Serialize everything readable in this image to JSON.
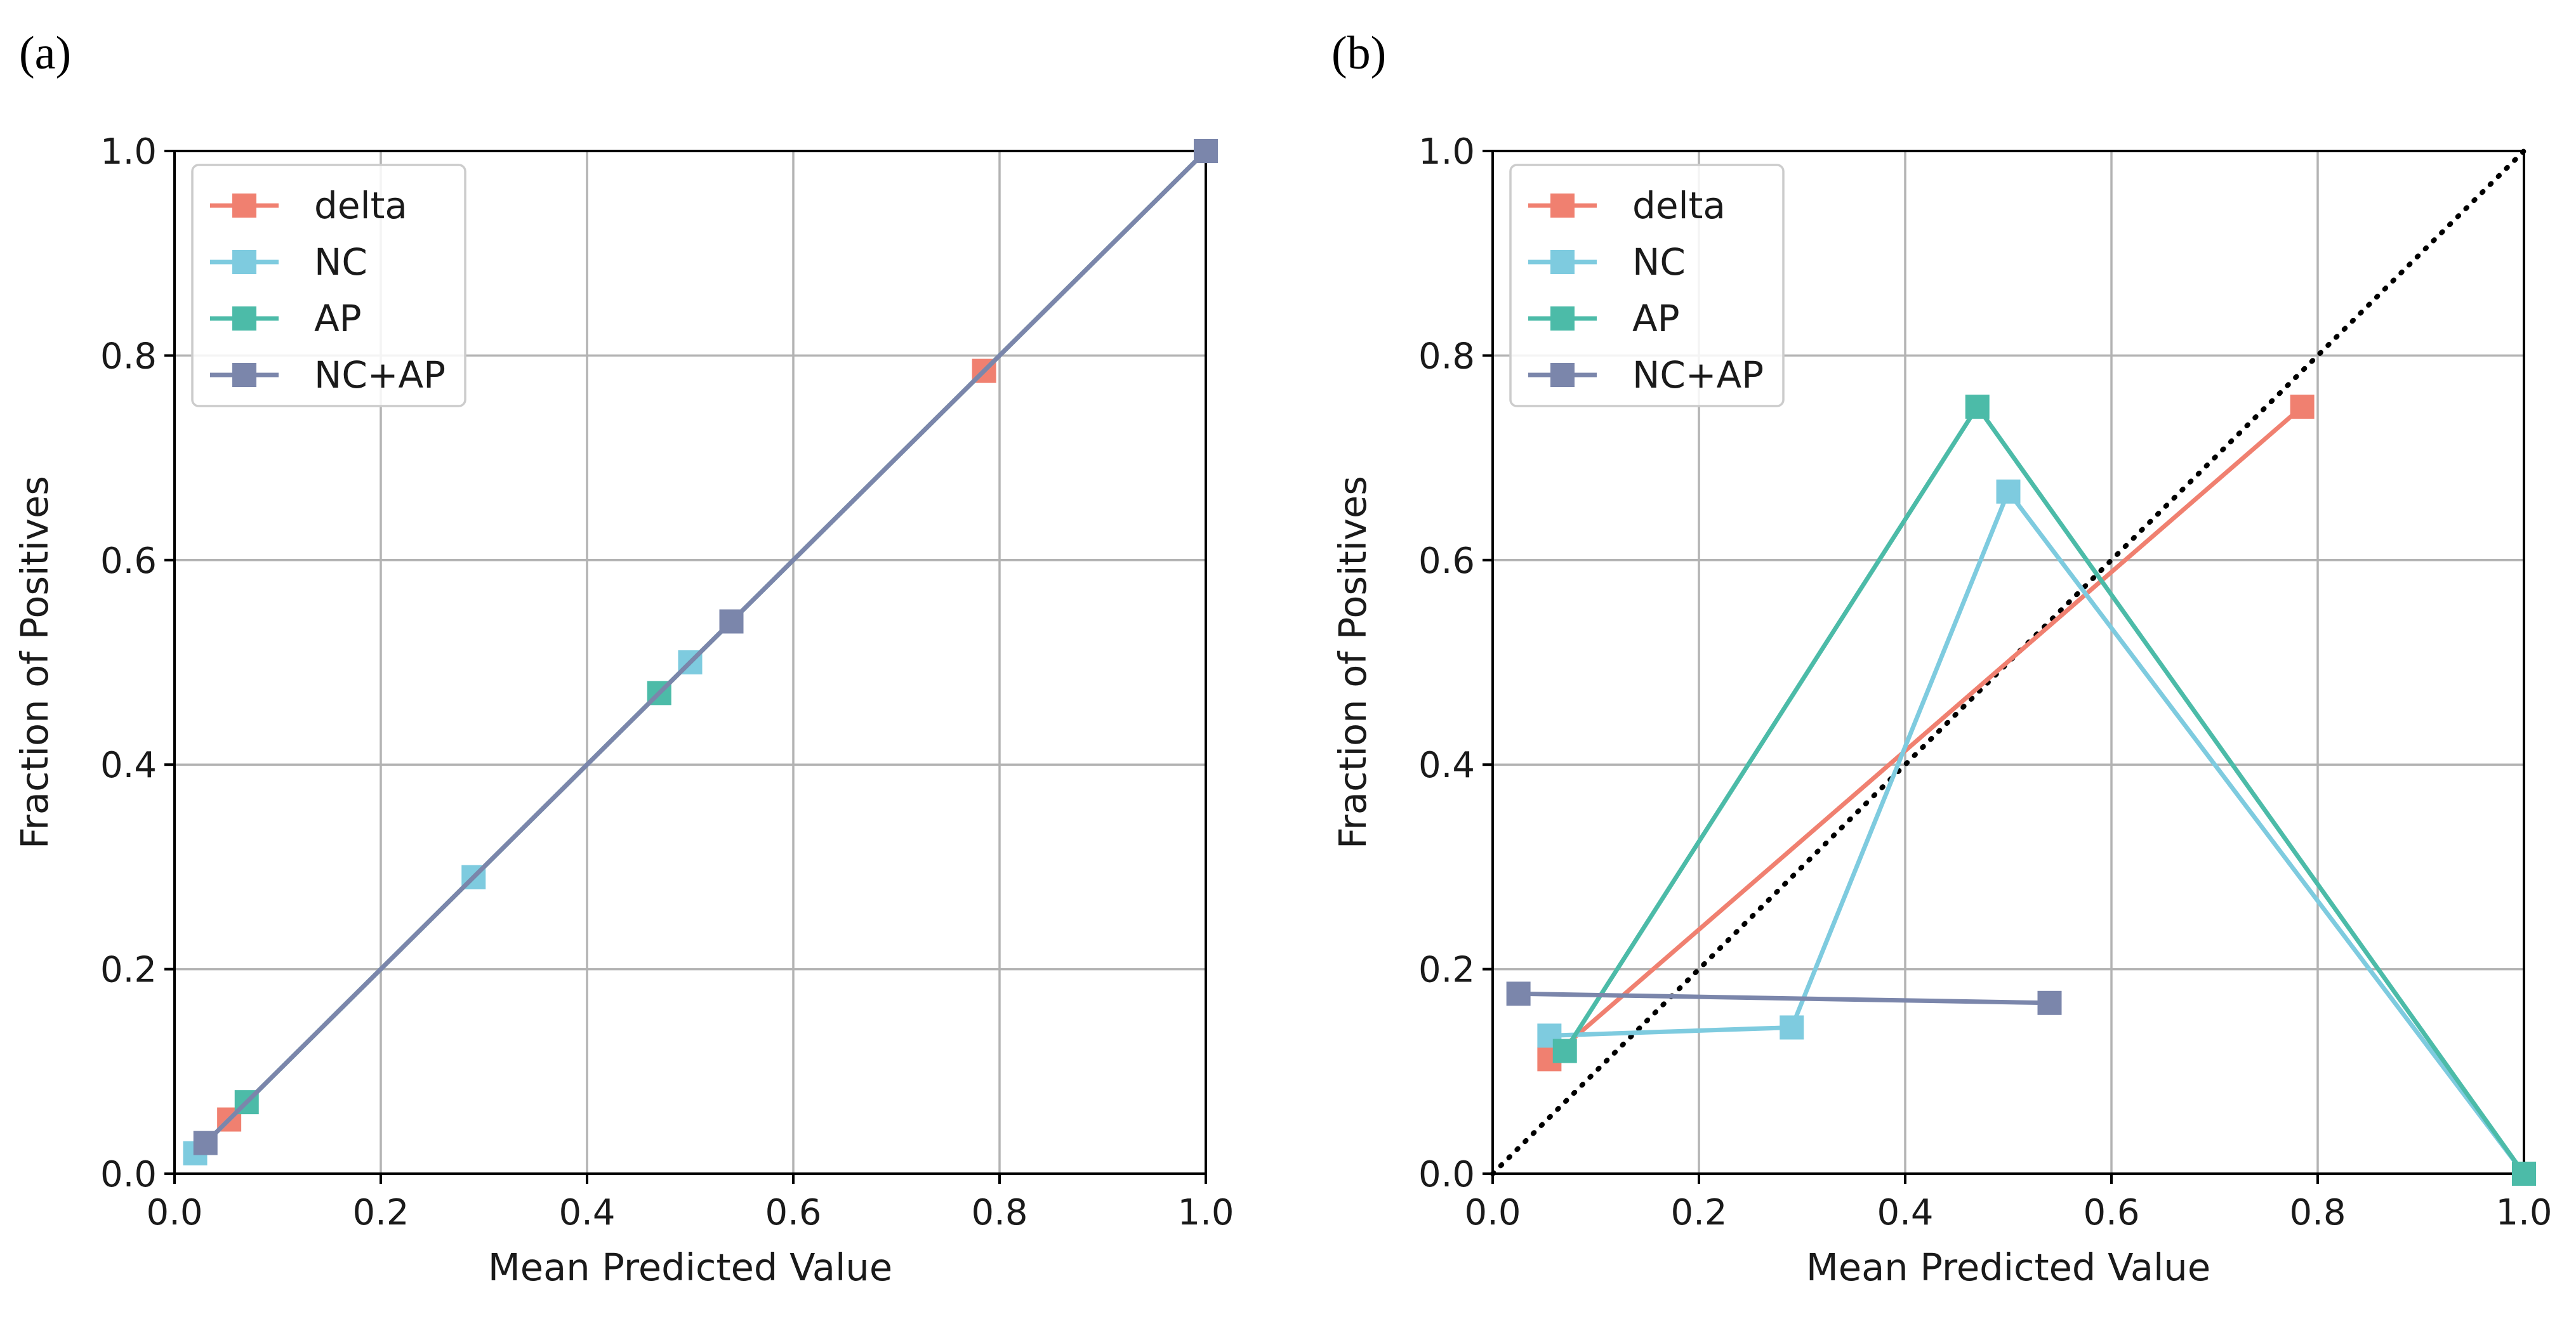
{
  "chart_data": [
    {
      "type": "line",
      "panel_label": "(a)",
      "xlabel": "Mean Predicted Value",
      "ylabel": "Fraction of Positives",
      "xlim": [
        0.0,
        1.0
      ],
      "ylim": [
        0.0,
        1.0
      ],
      "xticks": [
        "0.0",
        "0.2",
        "0.4",
        "0.6",
        "0.8",
        "1.0"
      ],
      "yticks": [
        "0.0",
        "0.2",
        "0.4",
        "0.6",
        "0.8",
        "1.0"
      ],
      "grid": true,
      "legend_position": "upper-left",
      "reference_diagonal": false,
      "series": [
        {
          "name": "delta",
          "color": "#f08070",
          "x": [
            0.053,
            0.785,
            1.0
          ],
          "y": [
            0.053,
            0.785,
            1.0
          ]
        },
        {
          "name": "NC",
          "color": "#7ecbdf",
          "x": [
            0.02,
            0.29,
            0.5,
            1.0
          ],
          "y": [
            0.02,
            0.29,
            0.5,
            1.0
          ]
        },
        {
          "name": "AP",
          "color": "#4cbba8",
          "x": [
            0.07,
            0.47,
            1.0
          ],
          "y": [
            0.07,
            0.47,
            1.0
          ]
        },
        {
          "name": "NC+AP",
          "color": "#7b86ab",
          "x": [
            0.03,
            0.54,
            1.0
          ],
          "y": [
            0.03,
            0.54,
            1.0
          ]
        }
      ]
    },
    {
      "type": "line",
      "panel_label": "(b)",
      "xlabel": "Mean Predicted Value",
      "ylabel": "Fraction of Positives",
      "xlim": [
        0.0,
        1.0
      ],
      "ylim": [
        0.0,
        1.0
      ],
      "xticks": [
        "0.0",
        "0.2",
        "0.4",
        "0.6",
        "0.8",
        "1.0"
      ],
      "yticks": [
        "0.0",
        "0.2",
        "0.4",
        "0.6",
        "0.8",
        "1.0"
      ],
      "grid": true,
      "legend_position": "upper-left",
      "reference_diagonal": true,
      "series": [
        {
          "name": "delta",
          "color": "#f08070",
          "x": [
            0.055,
            0.785
          ],
          "y": [
            0.112,
            0.75
          ]
        },
        {
          "name": "NC",
          "color": "#7ecbdf",
          "x": [
            0.055,
            0.29,
            0.5,
            1.0
          ],
          "y": [
            0.135,
            0.143,
            0.667,
            0.0
          ]
        },
        {
          "name": "AP",
          "color": "#4cbba8",
          "x": [
            0.07,
            0.47,
            1.0
          ],
          "y": [
            0.12,
            0.75,
            0.0
          ]
        },
        {
          "name": "NC+AP",
          "color": "#7b86ab",
          "x": [
            0.025,
            0.54
          ],
          "y": [
            0.176,
            0.167
          ]
        }
      ]
    }
  ]
}
